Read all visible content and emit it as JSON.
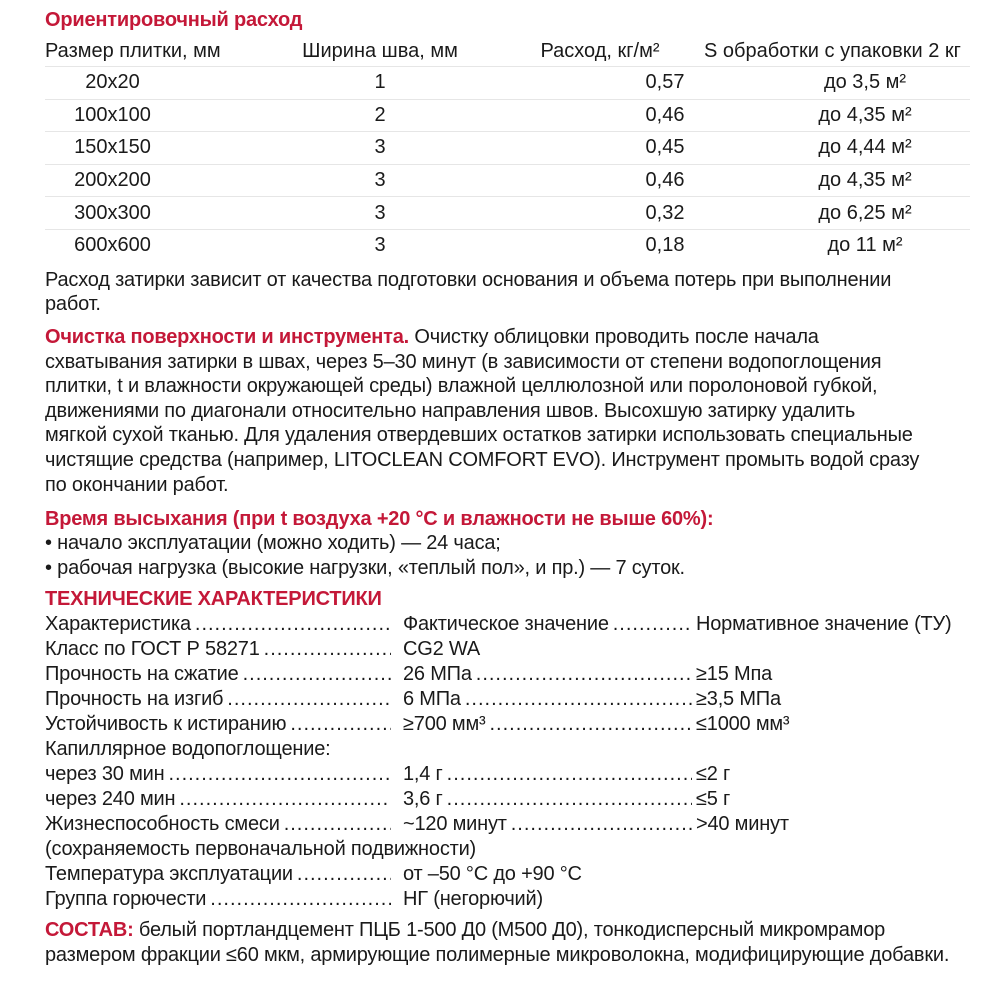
{
  "consumption": {
    "title": "Ориентировочный расход",
    "headers": [
      "Размер плитки, мм",
      "Ширина шва, мм",
      "Расход, кг/м²",
      "S обработки с упаковки 2 кг"
    ],
    "rows": [
      [
        "20x20",
        "1",
        "0,57",
        "до 3,5 м²"
      ],
      [
        "100x100",
        "2",
        "0,46",
        "до 4,35 м²"
      ],
      [
        "150x150",
        "3",
        "0,45",
        "до 4,44 м²"
      ],
      [
        "200x200",
        "3",
        "0,46",
        "до 4,35 м²"
      ],
      [
        "300x300",
        "3",
        "0,32",
        "до 6,25 м²"
      ],
      [
        "600x600",
        "3",
        "0,18",
        "до 11 м²"
      ]
    ]
  },
  "note": [
    "Расход затирки зависит от качества подготовки основания и объема потерь при выполнении",
    "работ."
  ],
  "cleaning": {
    "title": "Очистка поверхности и инструмента.",
    "lines": [
      " Очистку облицовки проводить после начала",
      "схватывания затирки в швах, через 5–30 минут (в зависимости от степени водопоглощения",
      "плитки, t и влажности окружающей среды) влажной целлюлозной или поролоновой губкой,",
      "движениями по диагонали относительно направления швов. Высохшую затирку удалить",
      "мягкой сухой тканью. Для удаления отвердевших остатков затирки использовать специальные",
      "чистящие средства (например, LITOCLEAN COMFORT EVO). Инструмент промыть водой сразу",
      "по окончании работ."
    ]
  },
  "drying": {
    "title": "Время высыхания (при t воздуха +20 °C и влажности не выше 60%):",
    "items": [
      "• начало эксплуатации (можно ходить) — 24 часа;",
      "• рабочая нагрузка (высокие нагрузки, «теплый пол», и пр.) — 7 суток."
    ]
  },
  "specs": {
    "title": "ТЕХНИЧЕСКИЕ ХАРАКТЕРИСТИКИ",
    "rows": [
      {
        "label": "Характеристика",
        "value": "Фактическое значение",
        "norm": "Нормативное значение (ТУ)"
      },
      {
        "label": "Класс по ГОСТ Р 58271",
        "value": "CG2 WA",
        "norm": ""
      },
      {
        "label": "Прочность на сжатие",
        "value": "26 МПа",
        "norm": "≥15 Мпа"
      },
      {
        "label": "Прочность на изгиб",
        "value": "6 МПа",
        "norm": "≥3,5 МПа"
      },
      {
        "label": "Устойчивость к истиранию",
        "value": "≥700 мм³",
        "norm": "≤1000 мм³"
      },
      {
        "label": "Капиллярное водопоглощение:",
        "value": "",
        "norm": ""
      },
      {
        "label": "через 30 мин",
        "value": "1,4 г",
        "norm": "≤2 г"
      },
      {
        "label": "через 240 мин",
        "value": "3,6 г",
        "norm": "≤5 г"
      },
      {
        "label": "Жизнеспособность смеси",
        "value": "~120 минут",
        "norm": ">40 минут"
      },
      {
        "label": "(сохраняемость первоначальной подвижности)",
        "value": "",
        "norm": ""
      },
      {
        "label": "Температура эксплуатации",
        "value": "от –50 °C до +90 °C",
        "norm": ""
      },
      {
        "label": "Группа горючести",
        "value": "НГ (негорючий)",
        "norm": ""
      }
    ]
  },
  "composition": {
    "title": "СОСТАВ:",
    "lines": [
      " белый портландцемент ПЦБ 1-500 Д0 (М500 Д0), тонкодисперсный микромрамор",
      "размером фракции ≤60 мкм, армирующие полимерные микроволокна, модифицирующие добавки."
    ]
  },
  "colors": {
    "accent": "#c41838",
    "text": "#1a1a1a"
  }
}
